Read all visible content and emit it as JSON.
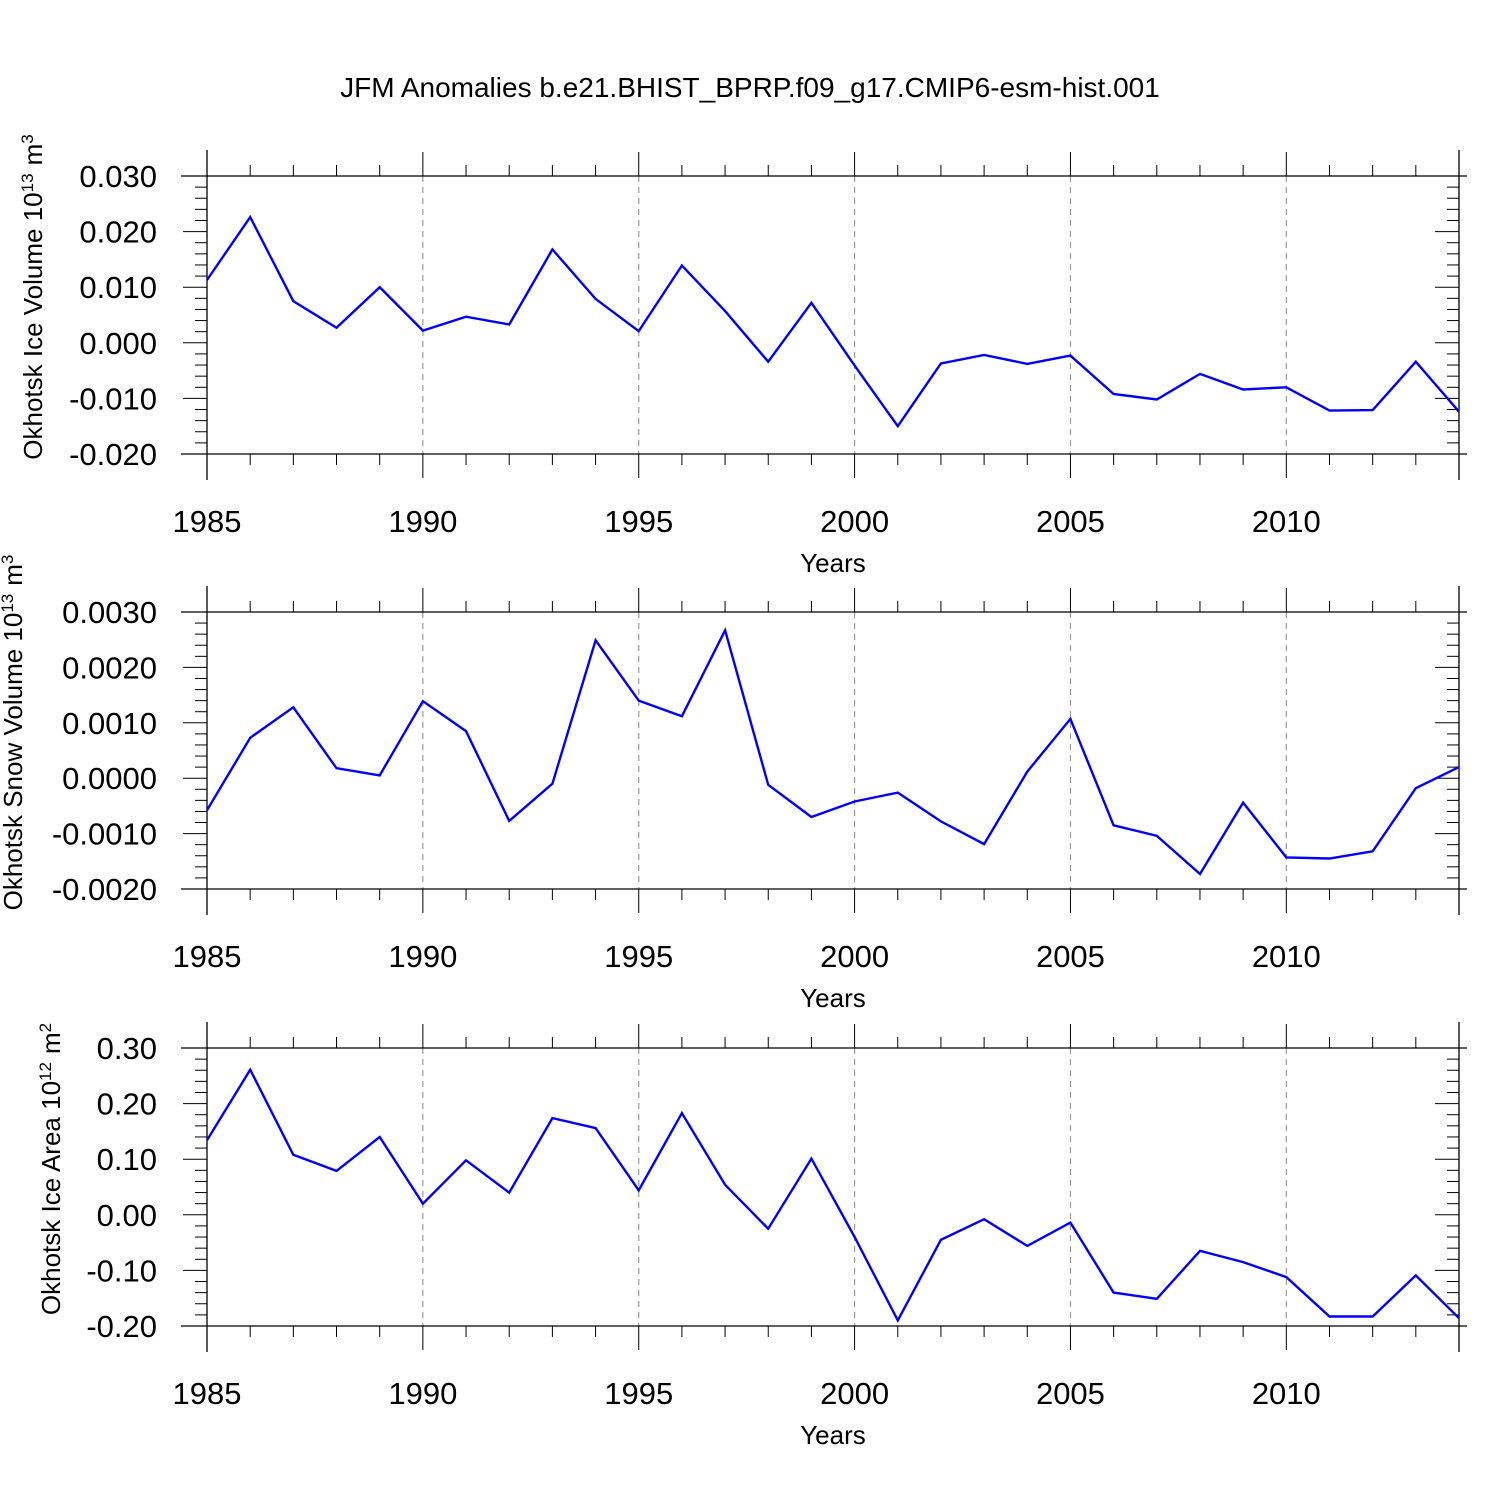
{
  "figure": {
    "title": "JFM Anomalies b.e21.BHIST_BPRP.f09_g17.CMIP6-esm-hist.001"
  },
  "colors": {
    "series": "#0000ff",
    "axis": "#000000",
    "grid": "#9a9a9a"
  },
  "chart_data": [
    {
      "type": "line",
      "title": "",
      "xlabel": "Years",
      "ylabel": "Okhotsk Ice Volume 10",
      "ylabel_exponent": "13",
      "ylabel_unit": "m",
      "ylabel_unit_exponent": "3",
      "xlim": [
        1985,
        2014
      ],
      "ylim": [
        -0.02,
        0.03
      ],
      "xticks": [
        1985,
        1990,
        1995,
        2000,
        2005,
        2010
      ],
      "yticks": [
        -0.02,
        -0.01,
        0.0,
        0.01,
        0.02,
        0.03
      ],
      "ytick_labels": [
        "-0.020",
        "-0.010",
        "0.000",
        "0.010",
        "0.020",
        "0.030"
      ],
      "grid": "vertical dashed at major x ticks",
      "x": [
        1985,
        1986,
        1987,
        1988,
        1989,
        1990,
        1991,
        1992,
        1993,
        1994,
        1995,
        1996,
        1997,
        1998,
        1999,
        2000,
        2001,
        2002,
        2003,
        2004,
        2005,
        2006,
        2007,
        2008,
        2009,
        2010,
        2011,
        2012,
        2013,
        2014
      ],
      "series": [
        {
          "values": [
            0.0113,
            0.0226,
            0.0075,
            0.0027,
            0.01,
            0.0022,
            0.0047,
            0.0033,
            0.0168,
            0.0079,
            0.0021,
            0.0139,
            0.0057,
            -0.0034,
            0.0072,
            -0.0041,
            -0.015,
            -0.0037,
            -0.0022,
            -0.0038,
            -0.0023,
            -0.0092,
            -0.0102,
            -0.0056,
            -0.0084,
            -0.008,
            -0.0122,
            -0.0121,
            -0.0034,
            -0.0124
          ]
        }
      ]
    },
    {
      "type": "line",
      "title": "",
      "xlabel": "Years",
      "ylabel": "Okhotsk Snow Volume 10",
      "ylabel_exponent": "13",
      "ylabel_unit": "m",
      "ylabel_unit_exponent": "3",
      "xlim": [
        1985,
        2014
      ],
      "ylim": [
        -0.002,
        0.003
      ],
      "xticks": [
        1985,
        1990,
        1995,
        2000,
        2005,
        2010
      ],
      "yticks": [
        -0.002,
        -0.001,
        0.0,
        0.001,
        0.002,
        0.003
      ],
      "ytick_labels": [
        "-0.0020",
        "-0.0010",
        "0.0000",
        "0.0010",
        "0.0020",
        "0.0030"
      ],
      "grid": "vertical dashed at major x ticks",
      "x": [
        1985,
        1986,
        1987,
        1988,
        1989,
        1990,
        1991,
        1992,
        1993,
        1994,
        1995,
        1996,
        1997,
        1998,
        1999,
        2000,
        2001,
        2002,
        2003,
        2004,
        2005,
        2006,
        2007,
        2008,
        2009,
        2010,
        2011,
        2012,
        2013,
        2014
      ],
      "series": [
        {
          "values": [
            -0.00058,
            0.00073,
            0.00128,
            0.00018,
            5e-05,
            0.00139,
            0.00085,
            -0.00077,
            -0.0001,
            0.00249,
            0.0014,
            0.00112,
            0.00267,
            -0.00012,
            -0.0007,
            -0.00042,
            -0.00026,
            -0.00078,
            -0.00119,
            0.00012,
            0.00107,
            -0.00085,
            -0.00104,
            -0.00173,
            -0.00044,
            -0.00143,
            -0.00145,
            -0.00132,
            -0.00018,
            0.0002
          ]
        }
      ]
    },
    {
      "type": "line",
      "title": "",
      "xlabel": "Years",
      "ylabel": "Okhotsk Ice Area 10",
      "ylabel_exponent": "12",
      "ylabel_unit": "m",
      "ylabel_unit_exponent": "2",
      "xlim": [
        1985,
        2014
      ],
      "ylim": [
        -0.2,
        0.3
      ],
      "xticks": [
        1985,
        1990,
        1995,
        2000,
        2005,
        2010
      ],
      "yticks": [
        -0.2,
        -0.1,
        0.0,
        0.1,
        0.2,
        0.3
      ],
      "ytick_labels": [
        "-0.20",
        "-0.10",
        "0.00",
        "0.10",
        "0.20",
        "0.30"
      ],
      "grid": "vertical dashed at major x ticks",
      "x": [
        1985,
        1986,
        1987,
        1988,
        1989,
        1990,
        1991,
        1992,
        1993,
        1994,
        1995,
        1996,
        1997,
        1998,
        1999,
        2000,
        2001,
        2002,
        2003,
        2004,
        2005,
        2006,
        2007,
        2008,
        2009,
        2010,
        2011,
        2012,
        2013,
        2014
      ],
      "series": [
        {
          "values": [
            0.134,
            0.261,
            0.108,
            0.079,
            0.14,
            0.02,
            0.098,
            0.04,
            0.174,
            0.156,
            0.044,
            0.183,
            0.054,
            -0.025,
            0.101,
            -0.04,
            -0.19,
            -0.045,
            -0.008,
            -0.056,
            -0.014,
            -0.14,
            -0.151,
            -0.065,
            -0.085,
            -0.112,
            -0.183,
            -0.183,
            -0.109,
            -0.186
          ]
        }
      ]
    }
  ]
}
